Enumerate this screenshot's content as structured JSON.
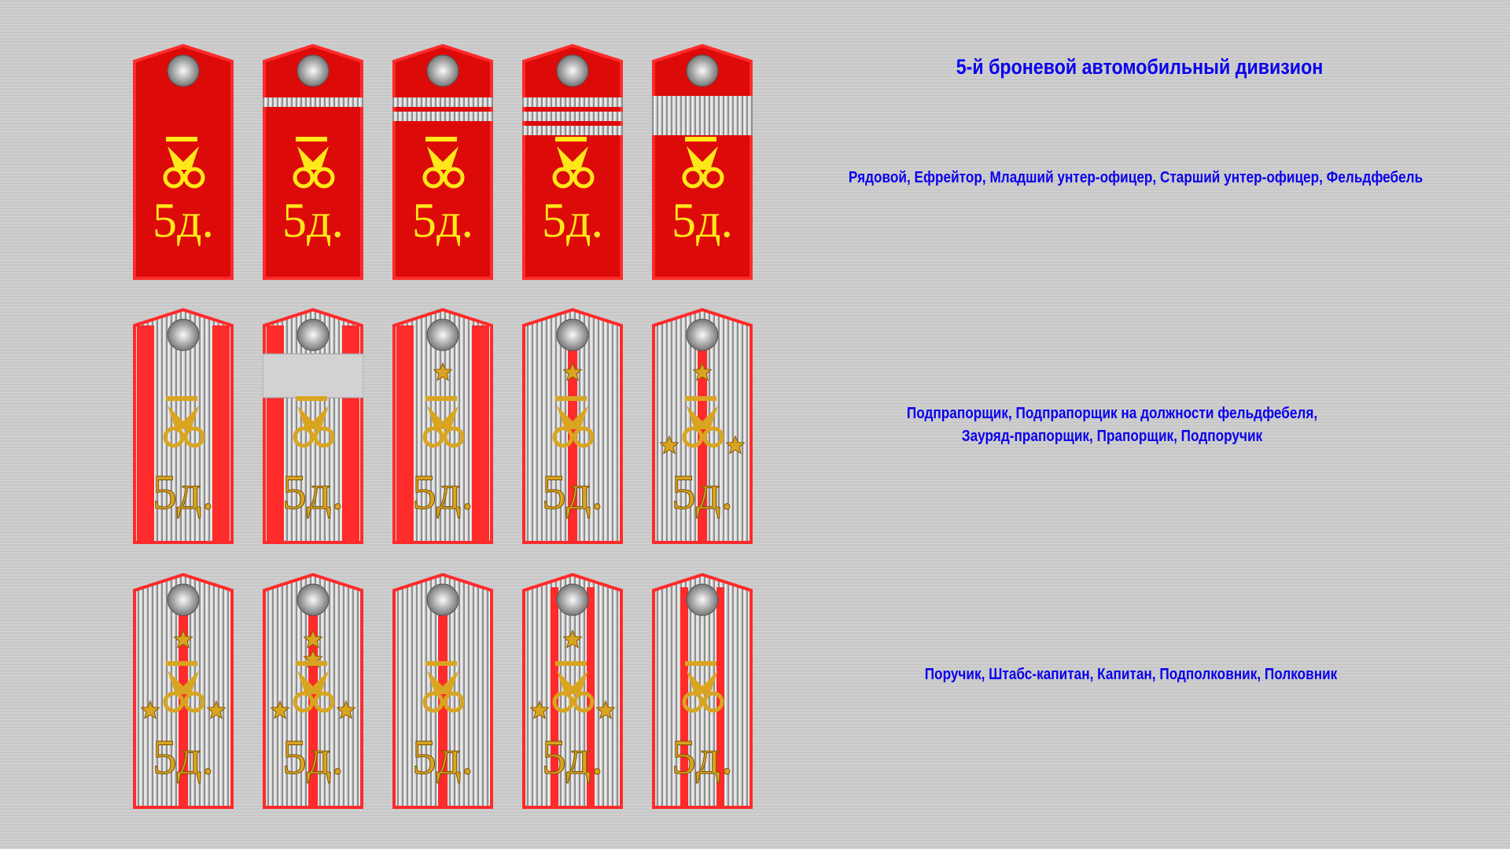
{
  "title": "5-й броневой автомобильный дивизион",
  "colors": {
    "text": "#0a00ee",
    "field": "#dd0a0a",
    "piping": "#ff2a2a",
    "emblem": "#ffe81a",
    "gold": "#d9a520",
    "galloon": "#bdbdbd"
  },
  "emblem_text": "5д.",
  "rows": [
    {
      "label_lines": [
        "Рядовой, Ефрейтор, Младший унтер-офицер, Старший унтер-офицер, Фельдфебель"
      ],
      "style": "cloth",
      "shoulder_boards": [
        {
          "stripes": 0
        },
        {
          "stripes": 1
        },
        {
          "stripes": 2
        },
        {
          "stripes": 3
        },
        {
          "stripes": 0,
          "wide_stripe": true
        }
      ]
    },
    {
      "label_lines": [
        "Подпрапорщик, Подпрапорщик на должности фельдфебеля,",
        "Зауряд-прапорщик, Прапорщик, Подпоручик"
      ],
      "style": "galloon-red",
      "shoulder_boards": [
        {
          "stars": 0,
          "gaps": 0,
          "red_field": true
        },
        {
          "stars": 0,
          "wide_stripe": true,
          "red_field": true
        },
        {
          "stars": 1,
          "red_field": true
        },
        {
          "stars": 1,
          "gaps": 1
        },
        {
          "stars": 3,
          "gaps": 1
        }
      ]
    },
    {
      "label_lines": [
        "Поручик, Штабс-капитан, Капитан, Подполковник, Полковник"
      ],
      "style": "galloon",
      "shoulder_boards": [
        {
          "stars": 3,
          "gaps": 1
        },
        {
          "stars": 4,
          "gaps": 1
        },
        {
          "stars": 0,
          "gaps": 1
        },
        {
          "stars": 3,
          "gaps": 2
        },
        {
          "stars": 0,
          "gaps": 2
        }
      ]
    }
  ]
}
